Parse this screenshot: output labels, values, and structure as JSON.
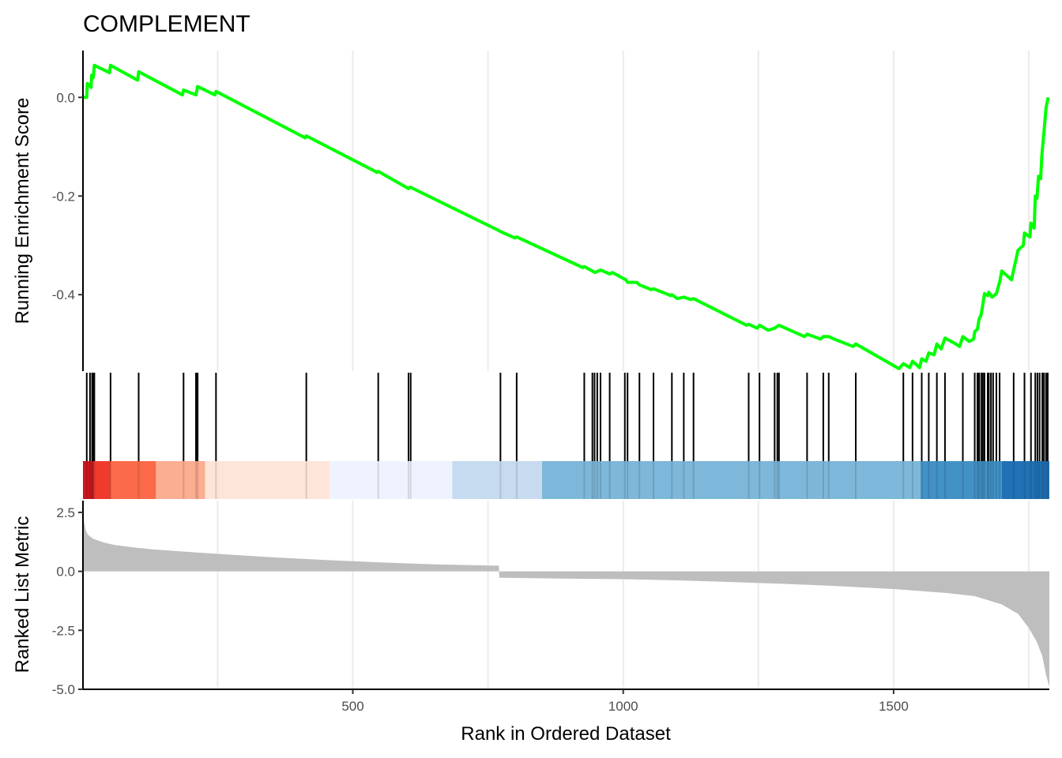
{
  "chart_data": {
    "type": "line",
    "title": "COMPLEMENT",
    "xlabel": "Rank in Ordered Dataset",
    "ylabel_top": "Running Enrichment Score",
    "ylabel_bottom": "Ranked List Metric",
    "xlim": [
      1,
      1788
    ],
    "x_ticks": [
      500,
      1000,
      1500
    ],
    "grid_x": true,
    "running_score": {
      "ylim": [
        -0.555,
        0.095
      ],
      "y_ticks": [
        0.0,
        -0.2,
        -0.4
      ],
      "y_tick_labels": [
        "0.0",
        "-0.2",
        "-0.4"
      ],
      "color": "#00ff00",
      "points": [
        [
          1,
          0.0
        ],
        [
          8,
          0.0
        ],
        [
          9,
          0.028
        ],
        [
          16,
          0.02
        ],
        [
          17,
          0.045
        ],
        [
          20,
          0.04
        ],
        [
          22,
          0.065
        ],
        [
          50,
          0.05
        ],
        [
          52,
          0.065
        ],
        [
          102,
          0.035
        ],
        [
          104,
          0.052
        ],
        [
          185,
          0.005
        ],
        [
          187,
          0.015
        ],
        [
          210,
          0.005
        ],
        [
          213,
          0.022
        ],
        [
          245,
          0.005
        ],
        [
          247,
          0.012
        ],
        [
          412,
          -0.082
        ],
        [
          414,
          -0.078
        ],
        [
          545,
          -0.152
        ],
        [
          547,
          -0.15
        ],
        [
          603,
          -0.185
        ],
        [
          606,
          -0.182
        ],
        [
          770,
          -0.27
        ],
        [
          773,
          -0.272
        ],
        [
          800,
          -0.285
        ],
        [
          803,
          -0.283
        ],
        [
          925,
          -0.345
        ],
        [
          928,
          -0.343
        ],
        [
          948,
          -0.355
        ],
        [
          958,
          -0.35
        ],
        [
          975,
          -0.358
        ],
        [
          980,
          -0.355
        ],
        [
          1005,
          -0.37
        ],
        [
          1008,
          -0.375
        ],
        [
          1025,
          -0.375
        ],
        [
          1030,
          -0.38
        ],
        [
          1052,
          -0.39
        ],
        [
          1056,
          -0.388
        ],
        [
          1088,
          -0.402
        ],
        [
          1090,
          -0.4
        ],
        [
          1100,
          -0.408
        ],
        [
          1112,
          -0.405
        ],
        [
          1125,
          -0.41
        ],
        [
          1130,
          -0.408
        ],
        [
          1228,
          -0.462
        ],
        [
          1232,
          -0.46
        ],
        [
          1248,
          -0.468
        ],
        [
          1252,
          -0.462
        ],
        [
          1268,
          -0.472
        ],
        [
          1280,
          -0.468
        ],
        [
          1288,
          -0.462
        ],
        [
          1335,
          -0.485
        ],
        [
          1340,
          -0.48
        ],
        [
          1365,
          -0.49
        ],
        [
          1370,
          -0.485
        ],
        [
          1380,
          -0.485
        ],
        [
          1390,
          -0.49
        ],
        [
          1425,
          -0.505
        ],
        [
          1430,
          -0.5
        ],
        [
          1510,
          -0.55
        ],
        [
          1518,
          -0.54
        ],
        [
          1530,
          -0.548
        ],
        [
          1535,
          -0.535
        ],
        [
          1548,
          -0.548
        ],
        [
          1552,
          -0.53
        ],
        [
          1560,
          -0.535
        ],
        [
          1565,
          -0.518
        ],
        [
          1575,
          -0.522
        ],
        [
          1580,
          -0.5
        ],
        [
          1588,
          -0.51
        ],
        [
          1595,
          -0.488
        ],
        [
          1612,
          -0.498
        ],
        [
          1622,
          -0.505
        ],
        [
          1628,
          -0.485
        ],
        [
          1640,
          -0.495
        ],
        [
          1648,
          -0.49
        ],
        [
          1650,
          -0.475
        ],
        [
          1655,
          -0.47
        ],
        [
          1658,
          -0.45
        ],
        [
          1662,
          -0.44
        ],
        [
          1665,
          -0.42
        ],
        [
          1668,
          -0.398
        ],
        [
          1674,
          -0.402
        ],
        [
          1676,
          -0.395
        ],
        [
          1682,
          -0.405
        ],
        [
          1690,
          -0.398
        ],
        [
          1696,
          -0.375
        ],
        [
          1700,
          -0.352
        ],
        [
          1718,
          -0.37
        ],
        [
          1722,
          -0.35
        ],
        [
          1730,
          -0.31
        ],
        [
          1740,
          -0.3
        ],
        [
          1742,
          -0.275
        ],
        [
          1752,
          -0.283
        ],
        [
          1754,
          -0.255
        ],
        [
          1760,
          -0.265
        ],
        [
          1762,
          -0.2
        ],
        [
          1765,
          -0.205
        ],
        [
          1768,
          -0.16
        ],
        [
          1772,
          -0.165
        ],
        [
          1774,
          -0.12
        ],
        [
          1778,
          -0.07
        ],
        [
          1782,
          -0.02
        ],
        [
          1786,
          0.0
        ]
      ]
    },
    "hits": [
      8,
      14,
      18,
      20,
      22,
      52,
      104,
      187,
      210,
      213,
      247,
      414,
      547,
      603,
      607,
      773,
      803,
      928,
      943,
      947,
      952,
      958,
      975,
      1003,
      1008,
      1030,
      1056,
      1090,
      1112,
      1130,
      1232,
      1252,
      1280,
      1285,
      1288,
      1340,
      1370,
      1380,
      1430,
      1518,
      1535,
      1552,
      1565,
      1580,
      1595,
      1628,
      1650,
      1655,
      1658,
      1662,
      1665,
      1668,
      1674,
      1676,
      1680,
      1684,
      1690,
      1696,
      1722,
      1742,
      1754,
      1762,
      1766,
      1770,
      1775,
      1778,
      1782,
      1785
    ],
    "color_bands": [
      {
        "from": 1,
        "to": 20,
        "color": "#cb181d"
      },
      {
        "from": 20,
        "to": 52,
        "color": "#ef3b2c"
      },
      {
        "from": 52,
        "to": 136,
        "color": "#fb6a4a"
      },
      {
        "from": 136,
        "to": 227,
        "color": "#fcae91"
      },
      {
        "from": 227,
        "to": 457,
        "color": "#fee5d9"
      },
      {
        "from": 457,
        "to": 684,
        "color": "#eff3ff"
      },
      {
        "from": 684,
        "to": 850,
        "color": "#c6dbef"
      },
      {
        "from": 850,
        "to": 1550,
        "color": "#7db7d9"
      },
      {
        "from": 1550,
        "to": 1700,
        "color": "#4292c6"
      },
      {
        "from": 1700,
        "to": 1788,
        "color": "#2171b5"
      }
    ],
    "ranked_metric": {
      "ylim": [
        -5.0,
        3.0
      ],
      "y_ticks": [
        2.5,
        0.0,
        -2.5,
        -5.0
      ],
      "y_tick_labels": [
        "2.5",
        "0.0",
        "-2.5",
        "-5.0"
      ],
      "color": "#bebebe",
      "points": [
        [
          1,
          2.75
        ],
        [
          3,
          2.1
        ],
        [
          6,
          1.75
        ],
        [
          10,
          1.55
        ],
        [
          20,
          1.38
        ],
        [
          40,
          1.22
        ],
        [
          60,
          1.12
        ],
        [
          100,
          1.0
        ],
        [
          130,
          0.93
        ],
        [
          180,
          0.85
        ],
        [
          250,
          0.74
        ],
        [
          350,
          0.6
        ],
        [
          450,
          0.48
        ],
        [
          550,
          0.38
        ],
        [
          650,
          0.3
        ],
        [
          770,
          0.24
        ],
        [
          771,
          -0.27
        ],
        [
          900,
          -0.31
        ],
        [
          1000,
          -0.33
        ],
        [
          1100,
          -0.38
        ],
        [
          1200,
          -0.45
        ],
        [
          1300,
          -0.53
        ],
        [
          1400,
          -0.63
        ],
        [
          1500,
          -0.75
        ],
        [
          1600,
          -0.92
        ],
        [
          1650,
          -1.05
        ],
        [
          1700,
          -1.4
        ],
        [
          1730,
          -1.8
        ],
        [
          1750,
          -2.4
        ],
        [
          1765,
          -3.0
        ],
        [
          1775,
          -3.6
        ],
        [
          1782,
          -4.4
        ],
        [
          1788,
          -4.9
        ]
      ]
    }
  }
}
